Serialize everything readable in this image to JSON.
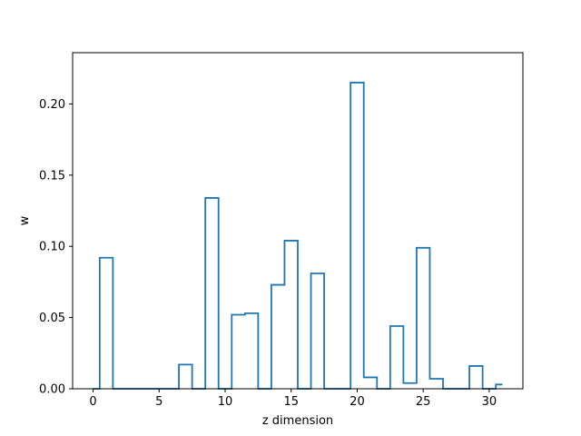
{
  "chart_data": {
    "type": "line",
    "drawstyle": "steps-mid",
    "title": "",
    "xlabel": "z dimension",
    "ylabel": "w",
    "xlim": [
      -1.55,
      32.55
    ],
    "ylim": [
      0,
      0.236
    ],
    "xticks": [
      0,
      5,
      10,
      15,
      20,
      25,
      30
    ],
    "xtick_labels": [
      "0",
      "5",
      "10",
      "15",
      "20",
      "25",
      "30"
    ],
    "yticks": [
      0.0,
      0.05,
      0.1,
      0.15,
      0.2
    ],
    "ytick_labels": [
      "0.00",
      "0.05",
      "0.10",
      "0.15",
      "0.20"
    ],
    "grid": false,
    "series_color": "#1f77b4",
    "x": [
      0,
      1,
      2,
      3,
      4,
      5,
      6,
      7,
      8,
      9,
      10,
      11,
      12,
      13,
      14,
      15,
      16,
      17,
      18,
      19,
      20,
      21,
      22,
      23,
      24,
      25,
      26,
      27,
      28,
      29,
      30,
      31
    ],
    "y": [
      0.0,
      0.092,
      0.0,
      0.0,
      0.0,
      0.0,
      0.0,
      0.017,
      0.0,
      0.134,
      0.0,
      0.052,
      0.053,
      0.0,
      0.073,
      0.104,
      0.0,
      0.081,
      0.0,
      0.0,
      0.215,
      0.008,
      0.0,
      0.044,
      0.004,
      0.099,
      0.007,
      0.0,
      0.0,
      0.016,
      0.0,
      0.003
    ]
  }
}
